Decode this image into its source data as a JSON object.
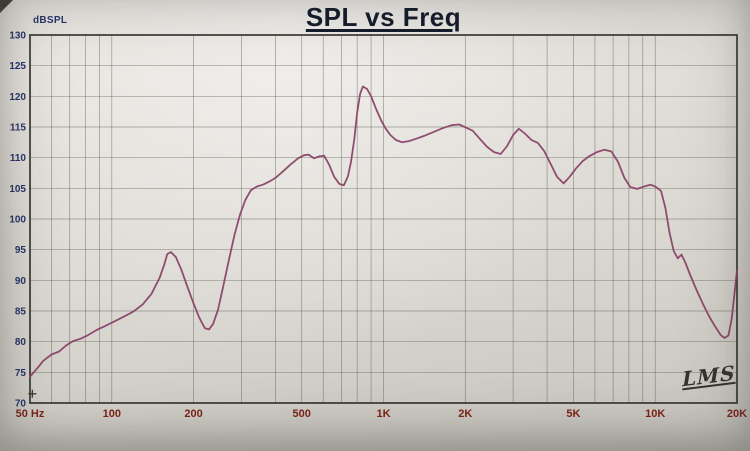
{
  "logo": "LMS",
  "colors": {
    "curve": "#8a4568",
    "grid": "#55544e",
    "frame": "#2e2e29",
    "title": "#141b2b",
    "y_label": "#26356b",
    "x_label": "#7d2418",
    "background_top": "#e9e6e0",
    "background_bottom": "#c6c3bd"
  },
  "chart_data": {
    "type": "line",
    "title": "SPL vs Freq",
    "xlabel": "Hz",
    "ylabel": "dBSPL",
    "x_scale": "log",
    "xlim": [
      50,
      20000
    ],
    "ylim": [
      70,
      130
    ],
    "grid": true,
    "legend": null,
    "x_ticks": [
      {
        "value": 50,
        "label": "50 Hz"
      },
      {
        "value": 100,
        "label": "100"
      },
      {
        "value": 200,
        "label": "200"
      },
      {
        "value": 500,
        "label": "500"
      },
      {
        "value": 1000,
        "label": "1K"
      },
      {
        "value": 2000,
        "label": "2K"
      },
      {
        "value": 5000,
        "label": "5K"
      },
      {
        "value": 10000,
        "label": "10K"
      },
      {
        "value": 20000,
        "label": "20K"
      }
    ],
    "y_ticks": [
      {
        "value": 130,
        "label": "130"
      },
      {
        "value": 125,
        "label": "125"
      },
      {
        "value": 120,
        "label": "120"
      },
      {
        "value": 115,
        "label": "115"
      },
      {
        "value": 110,
        "label": "110"
      },
      {
        "value": 105,
        "label": "105"
      },
      {
        "value": 100,
        "label": "100"
      },
      {
        "value": 95,
        "label": "95"
      },
      {
        "value": 90,
        "label": "90"
      },
      {
        "value": 85,
        "label": "85"
      },
      {
        "value": 80,
        "label": "80"
      },
      {
        "value": 75,
        "label": "75"
      },
      {
        "value": 70,
        "label": "70"
      }
    ],
    "cursor": {
      "freq": 51,
      "db": 71.5
    },
    "series": [
      {
        "name": "SPL",
        "points": [
          [
            50,
            74.3
          ],
          [
            53,
            75.6
          ],
          [
            56,
            76.9
          ],
          [
            60,
            77.9
          ],
          [
            64,
            78.4
          ],
          [
            68,
            79.4
          ],
          [
            72,
            80.1
          ],
          [
            77,
            80.5
          ],
          [
            82,
            81.1
          ],
          [
            88,
            81.9
          ],
          [
            94,
            82.5
          ],
          [
            100,
            83.1
          ],
          [
            110,
            84.0
          ],
          [
            120,
            84.9
          ],
          [
            130,
            86.1
          ],
          [
            140,
            87.8
          ],
          [
            150,
            90.4
          ],
          [
            156,
            92.6
          ],
          [
            160,
            94.3
          ],
          [
            165,
            94.6
          ],
          [
            172,
            93.8
          ],
          [
            180,
            91.8
          ],
          [
            190,
            88.9
          ],
          [
            200,
            86.2
          ],
          [
            210,
            83.9
          ],
          [
            220,
            82.2
          ],
          [
            228,
            82.0
          ],
          [
            236,
            82.9
          ],
          [
            246,
            85.2
          ],
          [
            258,
            89.3
          ],
          [
            270,
            93.4
          ],
          [
            283,
            97.4
          ],
          [
            296,
            100.6
          ],
          [
            310,
            103.1
          ],
          [
            325,
            104.7
          ],
          [
            342,
            105.3
          ],
          [
            360,
            105.6
          ],
          [
            380,
            106.1
          ],
          [
            400,
            106.7
          ],
          [
            425,
            107.7
          ],
          [
            455,
            108.9
          ],
          [
            485,
            109.9
          ],
          [
            510,
            110.4
          ],
          [
            530,
            110.5
          ],
          [
            555,
            109.9
          ],
          [
            580,
            110.2
          ],
          [
            605,
            110.3
          ],
          [
            630,
            108.9
          ],
          [
            658,
            106.9
          ],
          [
            688,
            105.7
          ],
          [
            715,
            105.5
          ],
          [
            740,
            107.0
          ],
          [
            760,
            109.4
          ],
          [
            780,
            112.9
          ],
          [
            800,
            117.4
          ],
          [
            820,
            120.4
          ],
          [
            840,
            121.6
          ],
          [
            870,
            121.2
          ],
          [
            900,
            120.0
          ],
          [
            940,
            117.9
          ],
          [
            980,
            116.1
          ],
          [
            1020,
            114.7
          ],
          [
            1060,
            113.7
          ],
          [
            1110,
            112.9
          ],
          [
            1170,
            112.5
          ],
          [
            1240,
            112.7
          ],
          [
            1320,
            113.1
          ],
          [
            1420,
            113.6
          ],
          [
            1530,
            114.2
          ],
          [
            1650,
            114.8
          ],
          [
            1780,
            115.3
          ],
          [
            1900,
            115.4
          ],
          [
            2010,
            114.9
          ],
          [
            2130,
            114.4
          ],
          [
            2260,
            113.1
          ],
          [
            2400,
            111.8
          ],
          [
            2550,
            110.9
          ],
          [
            2700,
            110.6
          ],
          [
            2850,
            111.9
          ],
          [
            3000,
            113.7
          ],
          [
            3150,
            114.7
          ],
          [
            3320,
            113.9
          ],
          [
            3500,
            112.9
          ],
          [
            3700,
            112.4
          ],
          [
            3900,
            111.1
          ],
          [
            4100,
            109.2
          ],
          [
            4350,
            106.9
          ],
          [
            4600,
            105.8
          ],
          [
            4850,
            106.9
          ],
          [
            5100,
            108.2
          ],
          [
            5400,
            109.4
          ],
          [
            5700,
            110.2
          ],
          [
            6100,
            110.9
          ],
          [
            6500,
            111.3
          ],
          [
            6900,
            111.0
          ],
          [
            7300,
            109.3
          ],
          [
            7700,
            106.7
          ],
          [
            8100,
            105.2
          ],
          [
            8600,
            104.9
          ],
          [
            9100,
            105.3
          ],
          [
            9600,
            105.6
          ],
          [
            10000,
            105.3
          ],
          [
            10500,
            104.6
          ],
          [
            10900,
            101.8
          ],
          [
            11300,
            97.7
          ],
          [
            11700,
            94.8
          ],
          [
            12100,
            93.6
          ],
          [
            12500,
            94.2
          ],
          [
            12900,
            92.9
          ],
          [
            13500,
            90.7
          ],
          [
            14200,
            88.4
          ],
          [
            15000,
            86.1
          ],
          [
            15800,
            84.1
          ],
          [
            16600,
            82.5
          ],
          [
            17400,
            81.1
          ],
          [
            18000,
            80.6
          ],
          [
            18600,
            81.0
          ],
          [
            19100,
            83.6
          ],
          [
            19500,
            87.1
          ],
          [
            20000,
            91.6
          ]
        ]
      }
    ]
  }
}
